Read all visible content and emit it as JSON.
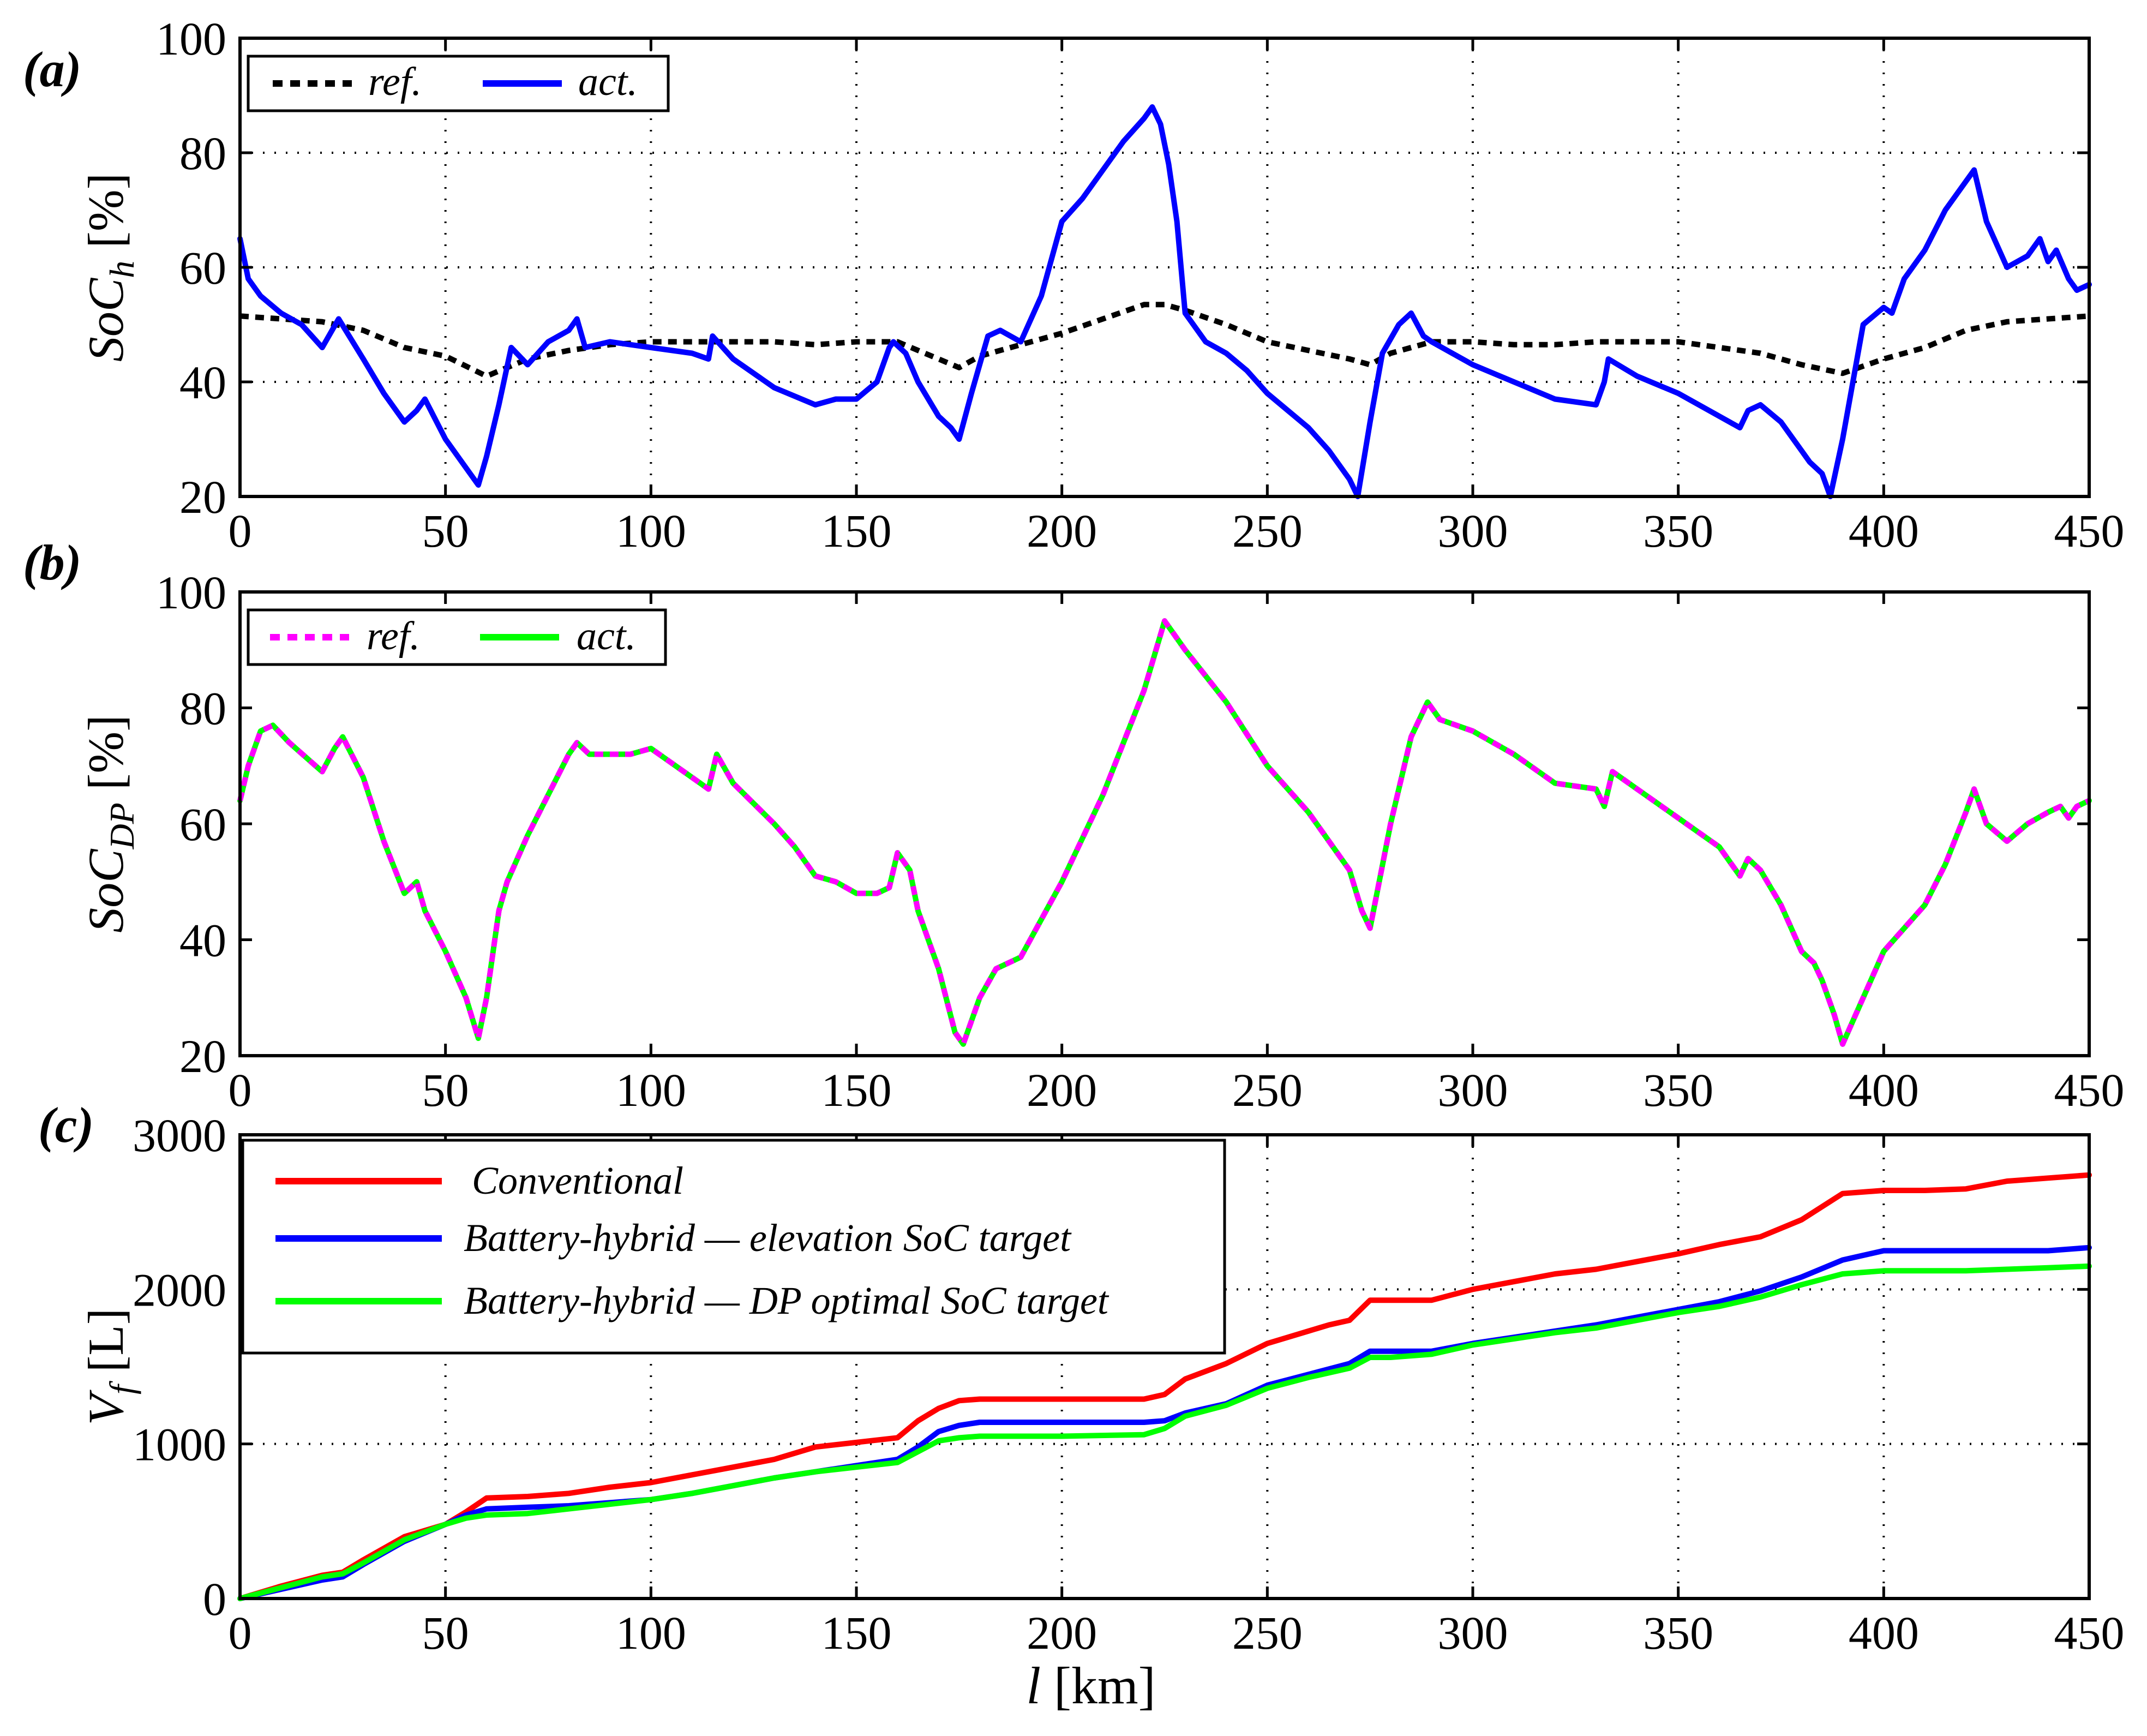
{
  "chart_data": [
    {
      "type": "line",
      "panel_label": "(a)",
      "ylabel_base": "SoC",
      "ylabel_sub": "h",
      "ylabel_unit": " [%]",
      "xlabel": "",
      "xlim": [
        0,
        450
      ],
      "ylim": [
        20,
        100
      ],
      "xticks": [
        "0",
        "50",
        "100",
        "150",
        "200",
        "250",
        "300",
        "350",
        "400",
        "450"
      ],
      "yticks": [
        "20",
        "40",
        "60",
        "80",
        "100"
      ],
      "grid": true,
      "legend_position": "top-left",
      "series": [
        {
          "name": "ref.",
          "color": "#000000",
          "dash": "dashed",
          "x": [
            0,
            10,
            20,
            30,
            40,
            50,
            60,
            70,
            80,
            90,
            100,
            110,
            120,
            130,
            140,
            150,
            160,
            170,
            175,
            180,
            190,
            200,
            210,
            220,
            225,
            230,
            240,
            250,
            260,
            270,
            275,
            280,
            290,
            300,
            310,
            320,
            330,
            340,
            350,
            360,
            370,
            380,
            390,
            400,
            410,
            420,
            430,
            440,
            450
          ],
          "y": [
            51.5,
            51,
            50.5,
            49,
            46,
            44.5,
            41,
            44,
            45.5,
            46.5,
            47,
            47,
            47,
            47,
            46.5,
            47,
            47,
            44,
            42.5,
            44.5,
            46.5,
            48.5,
            51,
            53.5,
            53.5,
            52.5,
            50,
            47,
            45.5,
            44,
            43,
            45,
            47,
            47,
            46.5,
            46.5,
            47,
            47,
            47,
            46,
            45,
            43,
            41.5,
            44,
            46,
            49,
            50.5,
            51,
            51.5
          ]
        },
        {
          "name": "act.",
          "color": "#0000ff",
          "dash": "solid",
          "x": [
            0,
            2,
            5,
            10,
            15,
            20,
            24,
            30,
            35,
            40,
            43,
            45,
            50,
            55,
            58,
            60,
            63,
            66,
            70,
            75,
            80,
            82,
            84,
            90,
            100,
            110,
            114,
            115,
            120,
            130,
            140,
            145,
            150,
            155,
            158,
            159,
            162,
            165,
            170,
            173,
            175,
            178,
            182,
            185,
            190,
            195,
            200,
            205,
            210,
            215,
            220,
            222,
            224,
            226,
            228,
            230,
            235,
            240,
            245,
            250,
            255,
            260,
            265,
            270,
            272,
            275,
            278,
            282,
            285,
            288,
            290,
            295,
            300,
            310,
            320,
            330,
            332,
            333,
            340,
            350,
            360,
            365,
            367,
            370,
            375,
            378,
            380,
            382,
            385,
            387,
            390,
            395,
            400,
            402,
            405,
            410,
            415,
            420,
            422,
            425,
            430,
            435,
            438,
            440,
            442,
            445,
            447,
            450
          ],
          "y": [
            65,
            58,
            55,
            52,
            50,
            46,
            51,
            44,
            38,
            33,
            35,
            37,
            30,
            25,
            22,
            27,
            36,
            46,
            43,
            47,
            49,
            51,
            46,
            47,
            46,
            45,
            44,
            48,
            44,
            39,
            36,
            37,
            37,
            40,
            46,
            47,
            45,
            40,
            34,
            32,
            30,
            38,
            48,
            49,
            47,
            55,
            68,
            72,
            77,
            82,
            86,
            88,
            85,
            78,
            68,
            52,
            47,
            45,
            42,
            38,
            35,
            32,
            28,
            23,
            20,
            33,
            45,
            50,
            52,
            48,
            47,
            45,
            43,
            40,
            37,
            36,
            40,
            44,
            41,
            38,
            34,
            32,
            35,
            36,
            33,
            30,
            28,
            26,
            24,
            20,
            30,
            50,
            53,
            52,
            58,
            63,
            70,
            75,
            77,
            68,
            60,
            62,
            65,
            61,
            63,
            58,
            56,
            57
          ]
        }
      ]
    },
    {
      "type": "line",
      "panel_label": "(b)",
      "ylabel_base": "SoC",
      "ylabel_sub": "DP",
      "ylabel_unit": " [%]",
      "xlabel": "",
      "xlim": [
        0,
        450
      ],
      "ylim": [
        20,
        100
      ],
      "xticks": [
        "0",
        "50",
        "100",
        "150",
        "200",
        "250",
        "300",
        "350",
        "400",
        "450"
      ],
      "yticks": [
        "20",
        "40",
        "60",
        "80",
        "100"
      ],
      "grid": false,
      "legend_position": "top-left",
      "series": [
        {
          "name": "act.",
          "color": "#00ff00",
          "dash": "solid",
          "x": [
            0,
            2,
            5,
            8,
            12,
            20,
            23,
            25,
            30,
            35,
            40,
            43,
            45,
            50,
            55,
            58,
            60,
            63,
            65,
            70,
            75,
            80,
            82,
            85,
            90,
            95,
            100,
            110,
            114,
            116,
            120,
            130,
            135,
            140,
            145,
            150,
            155,
            158,
            160,
            163,
            165,
            170,
            174,
            176,
            180,
            184,
            190,
            200,
            210,
            220,
            225,
            230,
            240,
            250,
            260,
            265,
            270,
            273,
            275,
            280,
            285,
            289,
            292,
            300,
            310,
            320,
            330,
            332,
            334,
            340,
            350,
            360,
            365,
            367,
            370,
            375,
            380,
            383,
            385,
            388,
            390,
            395,
            400,
            405,
            410,
            415,
            420,
            422,
            425,
            430,
            435,
            440,
            443,
            445,
            447,
            450
          ],
          "y": [
            64,
            70,
            76,
            77,
            74,
            69,
            73,
            75,
            68,
            57,
            48,
            50,
            45,
            38,
            30,
            23,
            30,
            45,
            50,
            58,
            65,
            72,
            74,
            72,
            72,
            72,
            73,
            68,
            66,
            72,
            67,
            60,
            56,
            51,
            50,
            48,
            48,
            49,
            55,
            52,
            45,
            35,
            24,
            22,
            30,
            35,
            37,
            50,
            65,
            83,
            95,
            90,
            81,
            70,
            62,
            57,
            52,
            45,
            42,
            60,
            75,
            81,
            78,
            76,
            72,
            67,
            66,
            63,
            69,
            66,
            61,
            56,
            51,
            54,
            52,
            46,
            38,
            36,
            33,
            27,
            22,
            30,
            38,
            42,
            46,
            53,
            62,
            66,
            60,
            57,
            60,
            62,
            63,
            61,
            63,
            64
          ]
        },
        {
          "name": "ref.",
          "color": "#ff00ff",
          "dash": "dashed",
          "x": [
            0,
            2,
            5,
            8,
            12,
            20,
            23,
            25,
            30,
            35,
            40,
            43,
            45,
            50,
            55,
            58,
            60,
            63,
            65,
            70,
            75,
            80,
            82,
            85,
            90,
            95,
            100,
            110,
            114,
            116,
            120,
            130,
            135,
            140,
            145,
            150,
            155,
            158,
            160,
            163,
            165,
            170,
            174,
            176,
            180,
            184,
            190,
            200,
            210,
            220,
            225,
            230,
            240,
            250,
            260,
            265,
            270,
            273,
            275,
            280,
            285,
            289,
            292,
            300,
            310,
            320,
            330,
            332,
            334,
            340,
            350,
            360,
            365,
            367,
            370,
            375,
            380,
            383,
            385,
            388,
            390,
            395,
            400,
            405,
            410,
            415,
            420,
            422,
            425,
            430,
            435,
            440,
            443,
            445,
            447,
            450
          ],
          "y": [
            64,
            70,
            76,
            77,
            74,
            69,
            73,
            75,
            68,
            57,
            48,
            50,
            45,
            38,
            30,
            23,
            30,
            45,
            50,
            58,
            65,
            72,
            74,
            72,
            72,
            72,
            73,
            68,
            66,
            72,
            67,
            60,
            56,
            51,
            50,
            48,
            48,
            49,
            55,
            52,
            45,
            35,
            24,
            22,
            30,
            35,
            37,
            50,
            65,
            83,
            95,
            90,
            81,
            70,
            62,
            57,
            52,
            45,
            42,
            60,
            75,
            81,
            78,
            76,
            72,
            67,
            66,
            63,
            69,
            66,
            61,
            56,
            51,
            54,
            52,
            46,
            38,
            36,
            33,
            27,
            22,
            30,
            38,
            42,
            46,
            53,
            62,
            66,
            60,
            57,
            60,
            62,
            63,
            61,
            63,
            64
          ]
        }
      ]
    },
    {
      "type": "line",
      "panel_label": "(c)",
      "ylabel_base": "V",
      "ylabel_sub": "f",
      "ylabel_unit": " [L]",
      "xlabel_italic": "l",
      "xlabel_unit": " [km]",
      "xlim": [
        0,
        450
      ],
      "ylim": [
        0,
        3000
      ],
      "xticks": [
        "0",
        "50",
        "100",
        "150",
        "200",
        "250",
        "300",
        "350",
        "400",
        "450"
      ],
      "yticks": [
        "0",
        "1000",
        "2000",
        "3000"
      ],
      "grid": true,
      "legend_position": "top-left",
      "series": [
        {
          "name": "Conventional",
          "color": "#ff0000",
          "dash": "solid",
          "x": [
            0,
            10,
            20,
            25,
            30,
            40,
            50,
            55,
            60,
            70,
            80,
            90,
            100,
            110,
            120,
            130,
            140,
            150,
            160,
            165,
            170,
            175,
            180,
            200,
            220,
            225,
            230,
            240,
            250,
            260,
            265,
            270,
            275,
            280,
            290,
            300,
            310,
            320,
            330,
            340,
            350,
            360,
            370,
            380,
            390,
            400,
            410,
            420,
            430,
            440,
            450
          ],
          "y": [
            0,
            80,
            150,
            170,
            250,
            400,
            480,
            560,
            650,
            660,
            680,
            720,
            750,
            800,
            850,
            900,
            980,
            1010,
            1040,
            1150,
            1230,
            1280,
            1290,
            1290,
            1290,
            1320,
            1420,
            1520,
            1650,
            1730,
            1770,
            1800,
            1930,
            1930,
            1930,
            2000,
            2050,
            2100,
            2130,
            2180,
            2230,
            2290,
            2340,
            2450,
            2620,
            2640,
            2640,
            2650,
            2700,
            2720,
            2740
          ]
        },
        {
          "name": "Battery-hybrid — elevation SoC target",
          "color": "#0000ff",
          "dash": "solid",
          "x": [
            0,
            10,
            20,
            25,
            30,
            40,
            50,
            55,
            60,
            70,
            80,
            90,
            100,
            110,
            120,
            130,
            140,
            150,
            160,
            165,
            170,
            175,
            180,
            200,
            220,
            225,
            230,
            240,
            250,
            260,
            270,
            275,
            280,
            290,
            300,
            310,
            320,
            330,
            340,
            350,
            360,
            370,
            380,
            390,
            400,
            410,
            420,
            430,
            440,
            450
          ],
          "y": [
            0,
            60,
            120,
            140,
            220,
            370,
            480,
            540,
            580,
            590,
            600,
            620,
            640,
            680,
            730,
            780,
            820,
            860,
            900,
            980,
            1080,
            1120,
            1140,
            1140,
            1140,
            1150,
            1200,
            1260,
            1380,
            1450,
            1520,
            1600,
            1600,
            1600,
            1650,
            1690,
            1730,
            1770,
            1820,
            1870,
            1920,
            1990,
            2080,
            2190,
            2250,
            2250,
            2250,
            2250,
            2250,
            2270
          ]
        },
        {
          "name": "Battery-hybrid — DP optimal SoC target",
          "color": "#00ff00",
          "dash": "solid",
          "x": [
            0,
            10,
            20,
            25,
            30,
            40,
            50,
            55,
            60,
            70,
            80,
            90,
            100,
            110,
            120,
            130,
            140,
            150,
            160,
            165,
            170,
            175,
            180,
            200,
            220,
            225,
            230,
            240,
            250,
            260,
            270,
            275,
            280,
            290,
            300,
            310,
            320,
            330,
            340,
            350,
            360,
            370,
            380,
            390,
            400,
            410,
            420,
            430,
            440,
            450
          ],
          "y": [
            0,
            70,
            140,
            160,
            230,
            380,
            480,
            520,
            540,
            550,
            580,
            610,
            640,
            680,
            730,
            780,
            820,
            850,
            880,
            950,
            1020,
            1040,
            1050,
            1050,
            1060,
            1100,
            1180,
            1250,
            1360,
            1430,
            1490,
            1560,
            1560,
            1580,
            1640,
            1680,
            1720,
            1750,
            1800,
            1850,
            1890,
            1950,
            2030,
            2100,
            2120,
            2120,
            2120,
            2130,
            2140,
            2150
          ]
        }
      ]
    }
  ]
}
